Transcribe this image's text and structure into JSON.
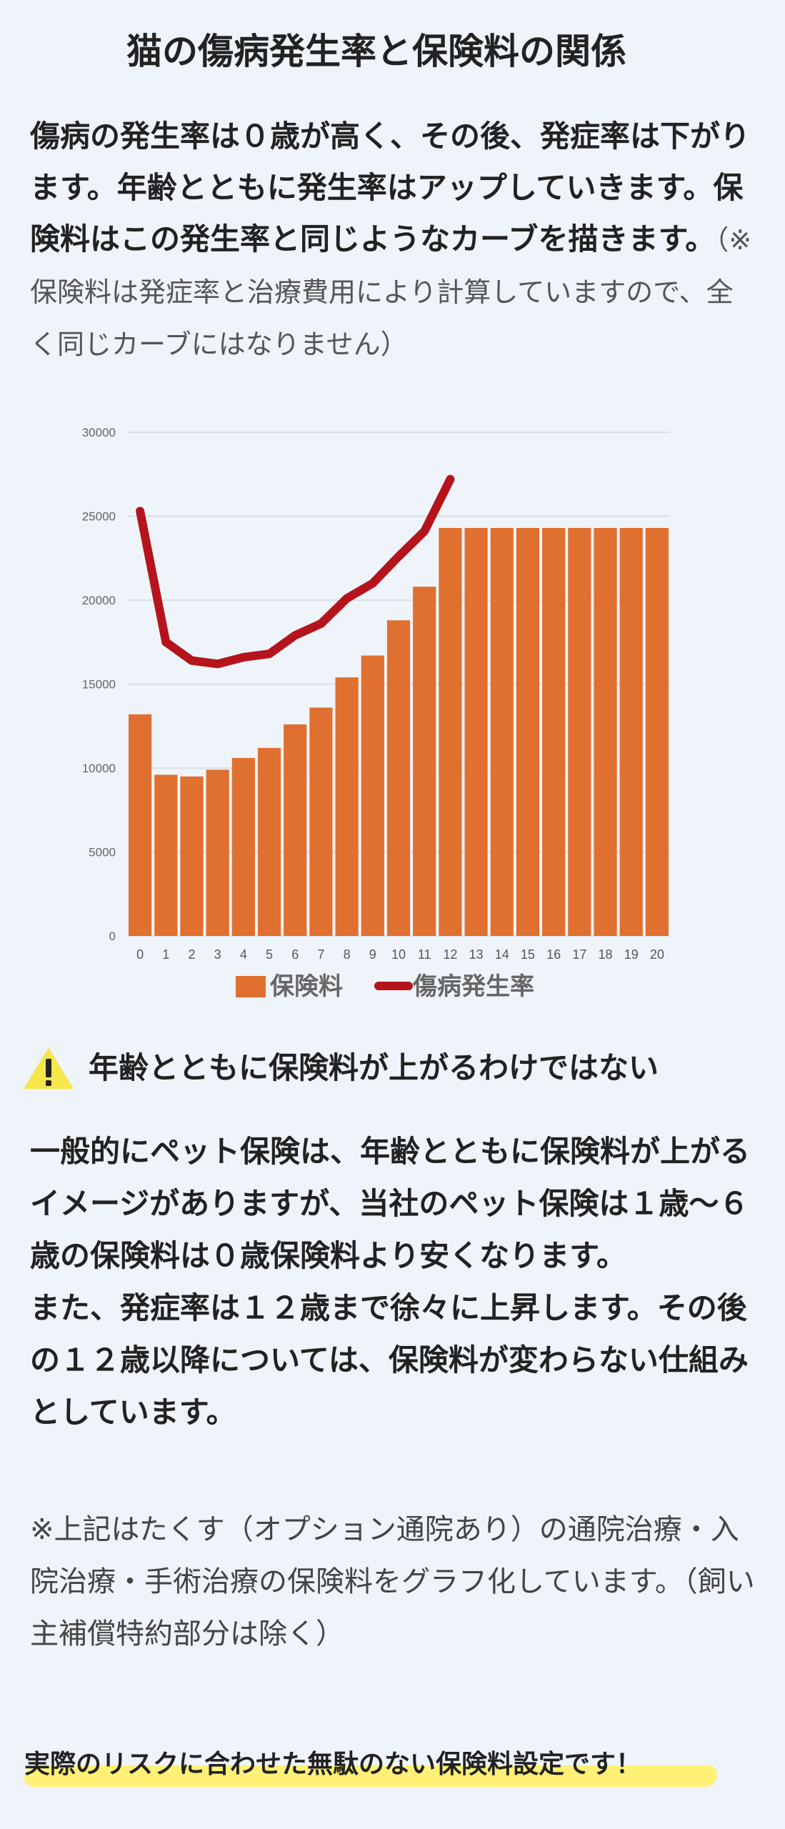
{
  "page": {
    "title": "猫の傷病発生率と保険料の関係"
  },
  "intro": {
    "strong_text": "傷病の発生率は０歳が高く、その後、発症率は下がります。年齢とともに発生率はアップしていきます。保険料はこの発生率と同じようなカーブを描きます。",
    "note_text": "（※保険料は発症率と治療費用により計算していますので、全く同じカーブにはなりません）"
  },
  "chart_data": {
    "type": "bar",
    "categories": [
      "0",
      "1",
      "2",
      "3",
      "4",
      "5",
      "6",
      "7",
      "8",
      "9",
      "10",
      "11",
      "12",
      "13",
      "14",
      "15",
      "16",
      "17",
      "18",
      "19",
      "20"
    ],
    "y_ticks": [
      "0",
      "5000",
      "10000",
      "15000",
      "20000",
      "25000",
      "30000"
    ],
    "ylim": [
      0,
      30000
    ],
    "grid": true,
    "legend_position": "bottom",
    "series": [
      {
        "name": "保険料",
        "type": "bar",
        "color": "#e07030",
        "values": [
          13200,
          9600,
          9500,
          9900,
          10600,
          11200,
          12600,
          13600,
          15400,
          16700,
          18800,
          20800,
          24300,
          24300,
          24300,
          24300,
          24300,
          24300,
          24300,
          24300,
          24300
        ]
      },
      {
        "name": "傷病発生率",
        "type": "line",
        "color": "#b5141c",
        "values": [
          25300,
          17500,
          16400,
          16200,
          16600,
          16800,
          17900,
          18600,
          20100,
          21000,
          22600,
          24100,
          27200,
          null,
          null,
          null,
          null,
          null,
          null,
          null,
          null
        ]
      }
    ]
  },
  "warning": {
    "icon": "warning-icon",
    "text": "年齢とともに保険料が上がるわけではない"
  },
  "body": {
    "paragraph1": "一般的にペット保険は、年齢とともに保険料が上がるイメージがありますが、当社のペット保険は１歳〜６歳の保険料は０歳保険料より安くなります。",
    "paragraph2": "また、発症率は１２歳まで徐々に上昇します。その後の１２歳以降については、保険料が変わらない仕組みとしています。"
  },
  "footnote": {
    "text": "※上記はたくす（オプション通院あり）の通院治療・入院治療・手術治療の保険料をグラフ化しています。（飼い主補償特約部分は除く）"
  },
  "banner": {
    "text": "実際のリスクに合わせた無駄のない保険料設定です！",
    "highlight_color": "#fff176"
  }
}
